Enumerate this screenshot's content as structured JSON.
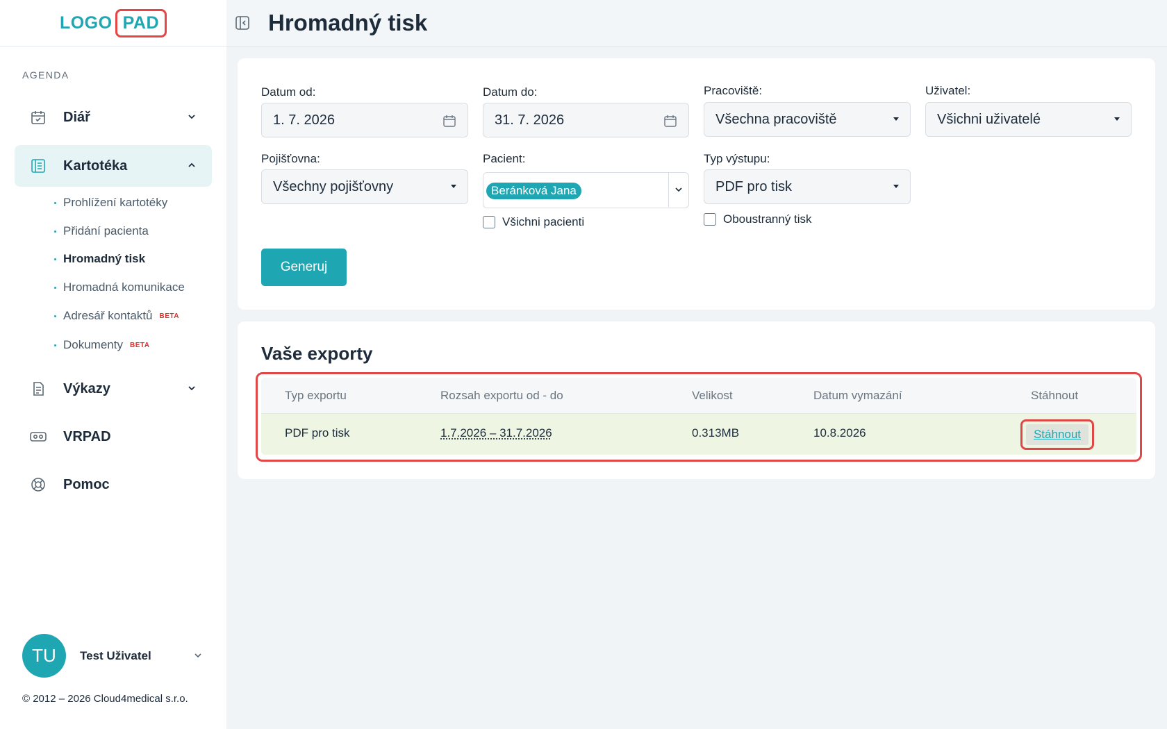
{
  "logo": {
    "part1": "LOGO",
    "part2": "PAD"
  },
  "sidebar": {
    "section_label": "AGENDA",
    "items": [
      {
        "label": "Diář",
        "icon": "calendar-check-icon"
      },
      {
        "label": "Kartotéka",
        "icon": "folder-list-icon"
      },
      {
        "label": "Výkazy",
        "icon": "report-icon"
      },
      {
        "label": "VRPAD",
        "icon": "vr-headset-icon"
      },
      {
        "label": "Pomoc",
        "icon": "lifebuoy-icon"
      }
    ],
    "subitems": [
      {
        "label": "Prohlížení kartotéky"
      },
      {
        "label": "Přidání pacienta"
      },
      {
        "label": "Hromadný tisk"
      },
      {
        "label": "Hromadná komunikace"
      },
      {
        "label": "Adresář kontaktů",
        "badge": "BETA"
      },
      {
        "label": "Dokumenty",
        "badge": "BETA"
      }
    ]
  },
  "user": {
    "initials": "TU",
    "name": "Test Uživatel"
  },
  "copyright": "© 2012 – 2026 Cloud4medical s.r.o.",
  "header": {
    "title": "Hromadný tisk"
  },
  "form": {
    "date_from": {
      "label": "Datum od:",
      "value": "1. 7. 2026"
    },
    "date_to": {
      "label": "Datum do:",
      "value": "31. 7. 2026"
    },
    "workplace": {
      "label": "Pracoviště:",
      "value": "Všechna pracoviště"
    },
    "user": {
      "label": "Uživatel:",
      "value": "Všichni uživatelé"
    },
    "insurance": {
      "label": "Pojišťovna:",
      "value": "Všechny pojišťovny"
    },
    "patient": {
      "label": "Pacient:",
      "selected": "Beránková Jana",
      "all_label": "Všichni pacienti"
    },
    "output_type": {
      "label": "Typ výstupu:",
      "value": "PDF pro tisk",
      "duplex_label": "Oboustranný tisk"
    },
    "generate_label": "Generuj"
  },
  "exports": {
    "title": "Vaše exporty",
    "columns": [
      "Typ exportu",
      "Rozsah exportu od - do",
      "Velikost",
      "Datum vymazání",
      "Stáhnout"
    ],
    "rows": [
      {
        "type": "PDF pro tisk",
        "range": "1.7.2026 – 31.7.2026",
        "size": "0.313MB",
        "delete_date": "10.8.2026",
        "download": "Stáhnout"
      }
    ]
  },
  "colors": {
    "accent": "#1fa6b3",
    "highlight": "#e04848",
    "row_bg": "#eef6e3"
  }
}
